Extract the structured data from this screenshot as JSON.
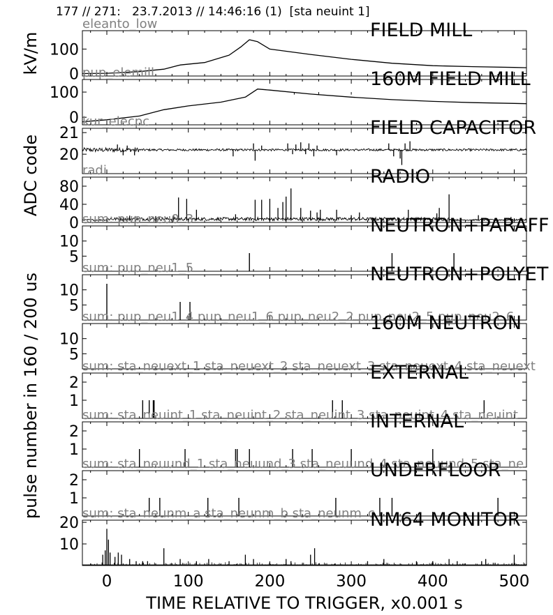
{
  "header": "177 // 271:   23.7.2013 // 14:46:16 (1)  [sta neuint 1]",
  "colors": {
    "line": "#000000",
    "channel_label": "#808080",
    "frame": "#000000"
  },
  "xlabel": "TIME RELATIVE TO TRIGGER,   x0.001 s",
  "chart_data": {
    "type": "line",
    "xlim": [
      -30,
      515
    ],
    "x_ticks": [
      0,
      100,
      200,
      300,
      400,
      500
    ],
    "x_tick_labels": [
      "0",
      "100",
      "200",
      "300",
      "400",
      "500"
    ],
    "group_ylabels": [
      {
        "text": "kV/m",
        "panels": [
          0,
          0
        ]
      },
      {
        "text": "ADC code",
        "panels": [
          2,
          3
        ]
      },
      {
        "text": "pulse number in 160 / 200 us",
        "panels": [
          4,
          10
        ]
      }
    ],
    "panels": [
      {
        "title": "FIELD MILL",
        "channel": "eleanto_low",
        "kind": "curve",
        "ylim": [
          -10,
          175
        ],
        "y_ticks": [
          0,
          100
        ],
        "y_tick_labels": [
          "0",
          "100"
        ],
        "points": [
          [
            -30,
            0
          ],
          [
            0,
            1
          ],
          [
            40,
            8
          ],
          [
            70,
            18
          ],
          [
            90,
            35
          ],
          [
            120,
            45
          ],
          [
            150,
            75
          ],
          [
            165,
            110
          ],
          [
            175,
            138
          ],
          [
            185,
            130
          ],
          [
            200,
            100
          ],
          [
            250,
            78
          ],
          [
            300,
            58
          ],
          [
            350,
            42
          ],
          [
            400,
            32
          ],
          [
            450,
            28
          ],
          [
            500,
            25
          ],
          [
            515,
            24
          ]
        ]
      },
      {
        "title": "160M FIELD MILL",
        "channel": "pup_elemill",
        "kind": "curve",
        "ylim": [
          -30,
          150
        ],
        "y_ticks": [
          0,
          100
        ],
        "y_tick_labels": [
          "0",
          "100"
        ],
        "points": [
          [
            -30,
            -18
          ],
          [
            0,
            -10
          ],
          [
            40,
            5
          ],
          [
            70,
            30
          ],
          [
            100,
            45
          ],
          [
            140,
            60
          ],
          [
            170,
            80
          ],
          [
            185,
            112
          ],
          [
            200,
            108
          ],
          [
            250,
            92
          ],
          [
            300,
            80
          ],
          [
            350,
            70
          ],
          [
            400,
            63
          ],
          [
            450,
            58
          ],
          [
            500,
            55
          ],
          [
            515,
            54
          ]
        ]
      },
      {
        "title": "FIELD CAPACITOR",
        "channel": "kur_elecpc",
        "kind": "noise",
        "baseline": 20.2,
        "noise": 0.05,
        "ylim": [
          19.1,
          21.2
        ],
        "y_ticks": [
          20,
          21
        ],
        "y_tick_labels": [
          "20",
          "21"
        ],
        "spikes": [
          [
            13,
            20.45
          ],
          [
            20,
            19.95
          ],
          [
            25,
            20.4
          ],
          [
            34,
            19.95
          ],
          [
            155,
            19.9
          ],
          [
            180,
            20.5
          ],
          [
            182,
            19.7
          ],
          [
            190,
            20.4
          ],
          [
            222,
            20.5
          ],
          [
            228,
            20.0
          ],
          [
            232,
            20.45
          ],
          [
            238,
            20.55
          ],
          [
            244,
            20.0
          ],
          [
            248,
            20.5
          ],
          [
            254,
            19.9
          ],
          [
            258,
            20.4
          ],
          [
            282,
            19.95
          ],
          [
            346,
            20.5
          ],
          [
            352,
            19.9
          ],
          [
            360,
            19.8
          ],
          [
            362,
            19.5
          ],
          [
            366,
            20.5
          ],
          [
            372,
            20.6
          ]
        ]
      },
      {
        "title": "RADIO",
        "channel": "radi",
        "kind": "noise",
        "baseline": 4,
        "noise": 4,
        "ylim": [
          0,
          100
        ],
        "y_ticks": [
          0,
          40,
          80
        ],
        "y_tick_labels": [
          "0",
          "40",
          "80"
        ],
        "spikes": [
          [
            20,
            12
          ],
          [
            28,
            15
          ],
          [
            35,
            14
          ],
          [
            60,
            14
          ],
          [
            82,
            15
          ],
          [
            88,
            55
          ],
          [
            98,
            52
          ],
          [
            110,
            28
          ],
          [
            158,
            18
          ],
          [
            182,
            50
          ],
          [
            190,
            50
          ],
          [
            200,
            52
          ],
          [
            210,
            32
          ],
          [
            216,
            45
          ],
          [
            220,
            57
          ],
          [
            226,
            75
          ],
          [
            238,
            32
          ],
          [
            250,
            26
          ],
          [
            258,
            22
          ],
          [
            262,
            28
          ],
          [
            282,
            28
          ],
          [
            300,
            16
          ],
          [
            310,
            22
          ],
          [
            370,
            28
          ],
          [
            405,
            20
          ],
          [
            408,
            32
          ],
          [
            420,
            62
          ],
          [
            456,
            16
          ],
          [
            496,
            12
          ]
        ]
      },
      {
        "title": "NEUTRON+PARAFF",
        "channel": "sum: pup_neu0_3",
        "kind": "spikes",
        "ylim": [
          0,
          15
        ],
        "y_ticks": [
          5,
          10
        ],
        "y_tick_labels": [
          "5",
          "10"
        ],
        "spikes": [
          [
            175,
            6
          ],
          [
            350,
            6
          ],
          [
            426,
            6
          ]
        ]
      },
      {
        "title": "NEUTRON+POLYET",
        "channel": "sum: pup_neu1_5",
        "kind": "spikes",
        "ylim": [
          0,
          15
        ],
        "y_ticks": [
          5,
          10
        ],
        "y_tick_labels": [
          "5",
          "10"
        ],
        "spikes": [
          [
            0,
            12
          ],
          [
            90,
            6
          ],
          [
            102,
            6
          ]
        ]
      },
      {
        "title": "160M NEUTRON",
        "channel": "sum: pup_neu1_4 pup_neu1_6 pup_neu2_2 pup_neu2_5 pup_neu2_6",
        "kind": "spikes",
        "ylim": [
          0,
          15
        ],
        "y_ticks": [
          5,
          10
        ],
        "y_tick_labels": [
          "5",
          "10"
        ],
        "spikes": [
          [
            0,
            1
          ]
        ]
      },
      {
        "title": "EXTERNAL",
        "channel": "sum: sta_neuext_1 sta_neuext_2 sta_neuext_3 sta_neuext_4 sta_neuext",
        "kind": "spikes",
        "ylim": [
          0,
          2.5
        ],
        "y_ticks": [
          1,
          2
        ],
        "y_tick_labels": [
          "1",
          "2"
        ],
        "spikes": [
          [
            44,
            1
          ],
          [
            52,
            1
          ],
          [
            57,
            1
          ],
          [
            58,
            1
          ],
          [
            277,
            1
          ],
          [
            289,
            1
          ],
          [
            463,
            1
          ]
        ]
      },
      {
        "title": "INTERNAL",
        "channel": "sum: sta_neuint_1 sta_neuint_2 sta_neuint_3 sta_neuint_4 sta_neuint",
        "kind": "spikes",
        "ylim": [
          0,
          2.5
        ],
        "y_ticks": [
          1,
          2
        ],
        "y_tick_labels": [
          "1",
          "2"
        ],
        "spikes": [
          [
            40,
            1
          ],
          [
            96,
            1
          ],
          [
            158,
            1
          ],
          [
            160,
            1
          ],
          [
            175,
            1
          ],
          [
            228,
            1
          ],
          [
            252,
            1
          ],
          [
            300,
            1
          ],
          [
            400,
            1
          ]
        ]
      },
      {
        "title": "UNDERFLOOR",
        "channel": "sum: sta_neuund_1 sta_neuund_3 sta_neuund_4 sta_neuund_5 sta_ne",
        "kind": "spikes",
        "ylim": [
          0,
          2.5
        ],
        "y_ticks": [
          1,
          2
        ],
        "y_tick_labels": [
          "1",
          "2"
        ],
        "spikes": [
          [
            52,
            1
          ],
          [
            65,
            1
          ],
          [
            124,
            1
          ],
          [
            162,
            1
          ],
          [
            281,
            1
          ],
          [
            335,
            1
          ],
          [
            350,
            1
          ],
          [
            480,
            1
          ]
        ]
      },
      {
        "title": "NM64 MONITOR",
        "channel": "sum: sta_neunm_a sta_neunm_b sta_neunm_c",
        "kind": "counts",
        "ylim": [
          0,
          21
        ],
        "y_ticks": [
          10,
          20
        ],
        "y_tick_labels": [
          "10",
          "20"
        ],
        "spikes": [
          [
            -5,
            5
          ],
          [
            -2,
            7
          ],
          [
            0,
            17
          ],
          [
            2,
            12
          ],
          [
            4,
            6
          ],
          [
            10,
            4
          ],
          [
            14,
            6
          ],
          [
            18,
            5
          ],
          [
            28,
            3
          ],
          [
            36,
            2
          ],
          [
            44,
            2
          ],
          [
            50,
            2
          ],
          [
            70,
            8
          ],
          [
            90,
            3
          ],
          [
            110,
            2
          ],
          [
            125,
            3
          ],
          [
            150,
            2
          ],
          [
            170,
            5
          ],
          [
            180,
            3
          ],
          [
            220,
            3
          ],
          [
            226,
            2
          ],
          [
            250,
            5
          ],
          [
            255,
            8
          ],
          [
            320,
            2
          ],
          [
            340,
            3
          ],
          [
            380,
            2
          ],
          [
            400,
            2
          ],
          [
            420,
            3
          ],
          [
            430,
            2
          ],
          [
            460,
            2
          ],
          [
            465,
            3
          ],
          [
            500,
            5
          ]
        ]
      }
    ]
  }
}
